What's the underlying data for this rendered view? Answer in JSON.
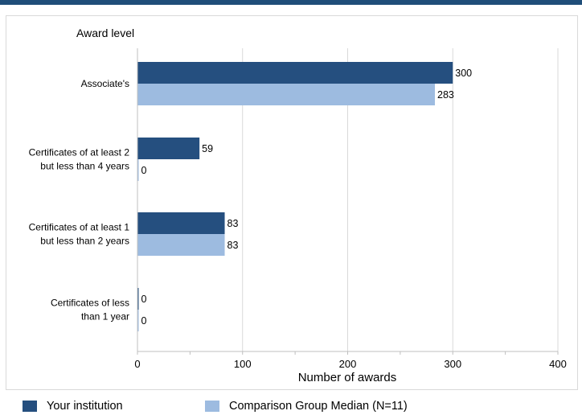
{
  "chart_data": {
    "type": "bar",
    "orientation": "horizontal",
    "y_title": "Award level",
    "xlabel": "Number of awards",
    "categories": [
      [
        "Associate's"
      ],
      [
        "Certificates of at least 2",
        "but less than 4 years"
      ],
      [
        "Certificates of at least 1",
        "but  less than 2 years"
      ],
      [
        "Certificates of less",
        "than 1 year"
      ]
    ],
    "series": [
      {
        "name": "Your institution",
        "color": "#254f7f",
        "values": [
          300,
          59,
          83,
          0
        ]
      },
      {
        "name": "Comparison Group Median (N=11)",
        "color": "#9dbbe0",
        "values": [
          283,
          0,
          83,
          0
        ]
      }
    ],
    "xlim": [
      0,
      400
    ],
    "xticks": [
      0,
      100,
      200,
      300,
      400
    ],
    "grid": true,
    "legend_position": "bottom"
  }
}
